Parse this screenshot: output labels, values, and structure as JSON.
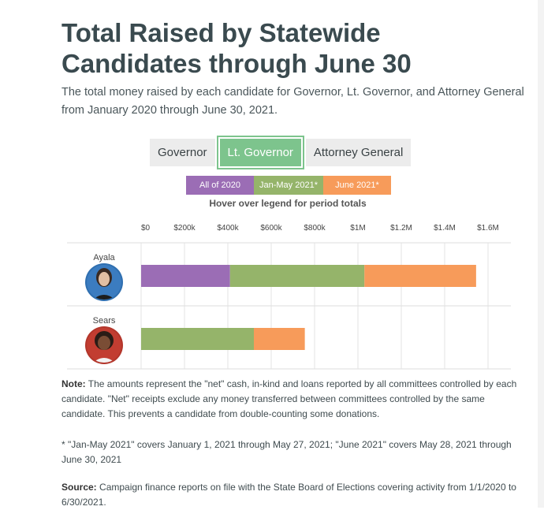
{
  "header": {
    "title": "Total Raised by Statewide Candidates through June 30",
    "subtitle": "The total money raised by each candidate for Governor, Lt. Governor, and Attorney General from January 2020 through June 30, 2021."
  },
  "tabs": [
    {
      "label": "Governor",
      "active": false
    },
    {
      "label": "Lt. Governor",
      "active": true
    },
    {
      "label": "Attorney General",
      "active": false
    }
  ],
  "legend": {
    "items": [
      {
        "label": "All of 2020",
        "color": "#9b6db5"
      },
      {
        "label": "Jan-May 2021*",
        "color": "#95b46a"
      },
      {
        "label": "June 2021*",
        "color": "#f79b5a"
      }
    ],
    "hint": "Hover over legend for period totals"
  },
  "chart_data": {
    "type": "bar",
    "orientation": "horizontal",
    "stacked": true,
    "categories": [
      "Ayala",
      "Sears"
    ],
    "series": [
      {
        "name": "All of 2020",
        "values": [
          410000,
          0
        ]
      },
      {
        "name": "Jan-May 2021*",
        "values": [
          620000,
          520000
        ]
      },
      {
        "name": "June 2021*",
        "values": [
          515000,
          235000
        ]
      }
    ],
    "x_ticks": [
      "$0",
      "$200k",
      "$400k",
      "$600k",
      "$800k",
      "$1M",
      "$1.2M",
      "$1.4M",
      "$1.6M"
    ],
    "xlim": [
      0,
      1600000
    ],
    "grid": true
  },
  "notes": {
    "note_label": "Note:",
    "note_text": " The amounts represent the \"net\" cash, in-kind and loans reported by all committees controlled by each candidate. \"Net\" receipts exclude any money transferred between committees controlled by the same candidate. This prevents a candidate from double-counting some donations.",
    "footnote": "* \"Jan-May 2021\" covers January 1, 2021 through May 27, 2021; \"June 2021\" covers May 28, 2021 through June 30, 2021",
    "source_label": "Source:",
    "source_text": " Campaign finance reports on file with the State Board of Elections covering activity from 1/1/2020 to 6/30/2021."
  }
}
